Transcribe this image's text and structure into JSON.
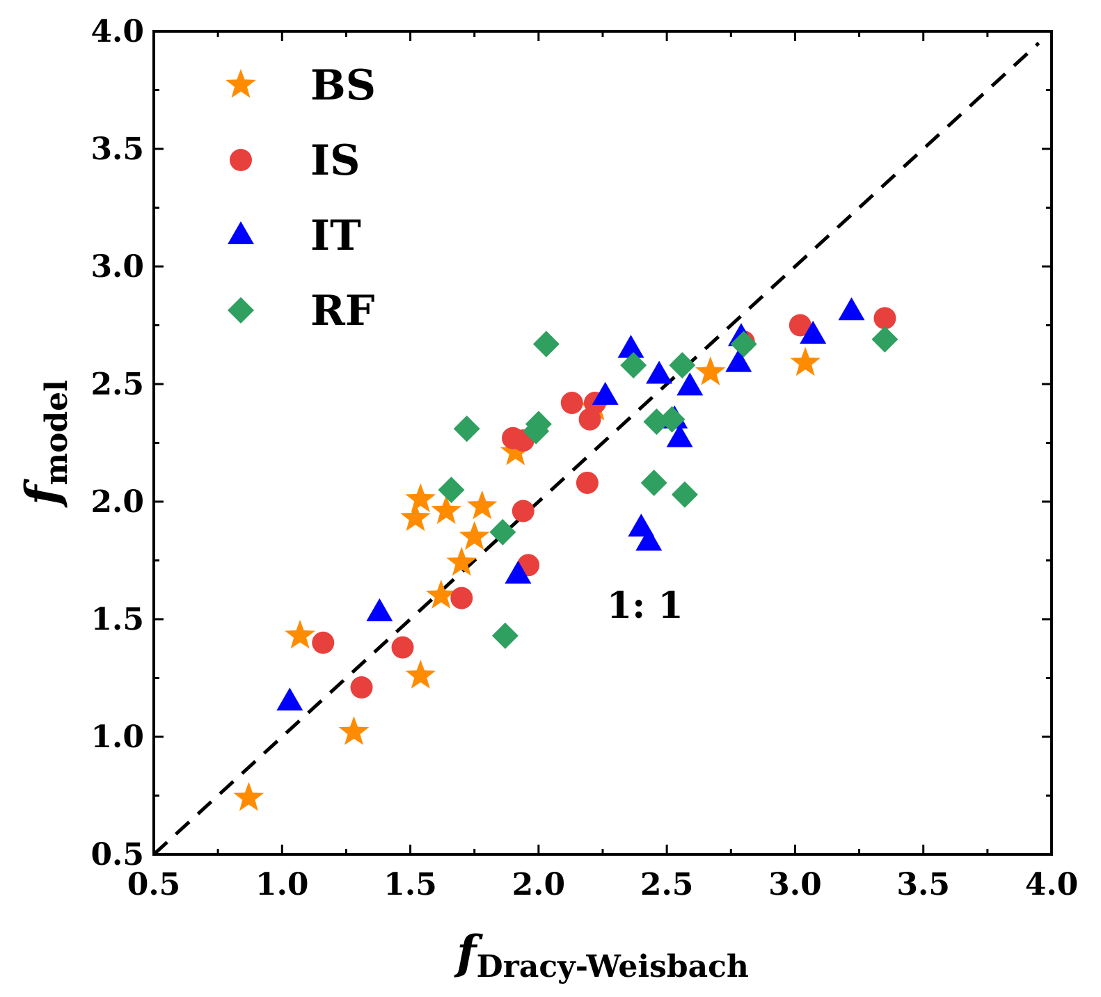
{
  "chart_data": {
    "type": "scatter",
    "xlabel": {
      "main": "f",
      "sub": "Dracy-Weisbach"
    },
    "ylabel": {
      "main": "f",
      "sub": "model"
    },
    "xlim": [
      0.5,
      4.0
    ],
    "ylim": [
      0.5,
      4.0
    ],
    "xticks": [
      "0.5",
      "1.0",
      "1.5",
      "2.0",
      "2.5",
      "3.0",
      "3.5",
      "4.0"
    ],
    "yticks": [
      "0.5",
      "1.0",
      "1.5",
      "2.0",
      "2.5",
      "3.0",
      "3.5",
      "4.0"
    ],
    "grid": false,
    "legend_position": "top-left",
    "reference_line": {
      "label": "1:  1",
      "style": "dashed",
      "slope": 1,
      "x_range": [
        0.5,
        3.95
      ]
    },
    "series": [
      {
        "name": "BS",
        "marker": "star",
        "color": "#FF8C00",
        "points": [
          [
            0.87,
            0.74
          ],
          [
            1.07,
            1.43
          ],
          [
            1.28,
            1.02
          ],
          [
            1.54,
            1.26
          ],
          [
            1.52,
            1.93
          ],
          [
            1.54,
            2.01
          ],
          [
            1.62,
            1.6
          ],
          [
            1.64,
            1.96
          ],
          [
            1.7,
            1.74
          ],
          [
            1.75,
            1.85
          ],
          [
            1.78,
            1.98
          ],
          [
            1.91,
            2.21
          ],
          [
            2.22,
            2.4
          ],
          [
            2.67,
            2.55
          ],
          [
            3.04,
            2.59
          ]
        ]
      },
      {
        "name": "IS",
        "marker": "circle",
        "color": "#E8403C",
        "points": [
          [
            1.16,
            1.4
          ],
          [
            1.31,
            1.21
          ],
          [
            1.47,
            1.38
          ],
          [
            1.7,
            1.59
          ],
          [
            1.9,
            2.27
          ],
          [
            1.94,
            2.26
          ],
          [
            1.94,
            1.96
          ],
          [
            1.96,
            1.73
          ],
          [
            2.13,
            2.42
          ],
          [
            2.2,
            2.35
          ],
          [
            2.22,
            2.42
          ],
          [
            2.19,
            2.08
          ],
          [
            2.8,
            2.68
          ],
          [
            3.02,
            2.75
          ],
          [
            3.35,
            2.78
          ]
        ]
      },
      {
        "name": "IT",
        "marker": "triangle",
        "color": "#0000FF",
        "points": [
          [
            1.03,
            1.15
          ],
          [
            1.38,
            1.53
          ],
          [
            1.92,
            1.69
          ],
          [
            2.26,
            2.45
          ],
          [
            2.36,
            2.65
          ],
          [
            2.4,
            1.89
          ],
          [
            2.43,
            1.83
          ],
          [
            2.47,
            2.54
          ],
          [
            2.53,
            2.35
          ],
          [
            2.55,
            2.27
          ],
          [
            2.59,
            2.49
          ],
          [
            2.78,
            2.59
          ],
          [
            2.79,
            2.7
          ],
          [
            3.07,
            2.71
          ],
          [
            3.22,
            2.81
          ]
        ]
      },
      {
        "name": "RF",
        "marker": "diamond",
        "color": "#2FA060",
        "points": [
          [
            1.66,
            2.05
          ],
          [
            1.72,
            2.31
          ],
          [
            1.86,
            1.87
          ],
          [
            1.87,
            1.43
          ],
          [
            1.99,
            2.3
          ],
          [
            2.0,
            2.33
          ],
          [
            2.03,
            2.67
          ],
          [
            2.37,
            2.58
          ],
          [
            2.45,
            2.08
          ],
          [
            2.46,
            2.34
          ],
          [
            2.52,
            2.35
          ],
          [
            2.57,
            2.03
          ],
          [
            2.56,
            2.58
          ],
          [
            2.8,
            2.67
          ],
          [
            3.35,
            2.69
          ]
        ]
      }
    ]
  }
}
